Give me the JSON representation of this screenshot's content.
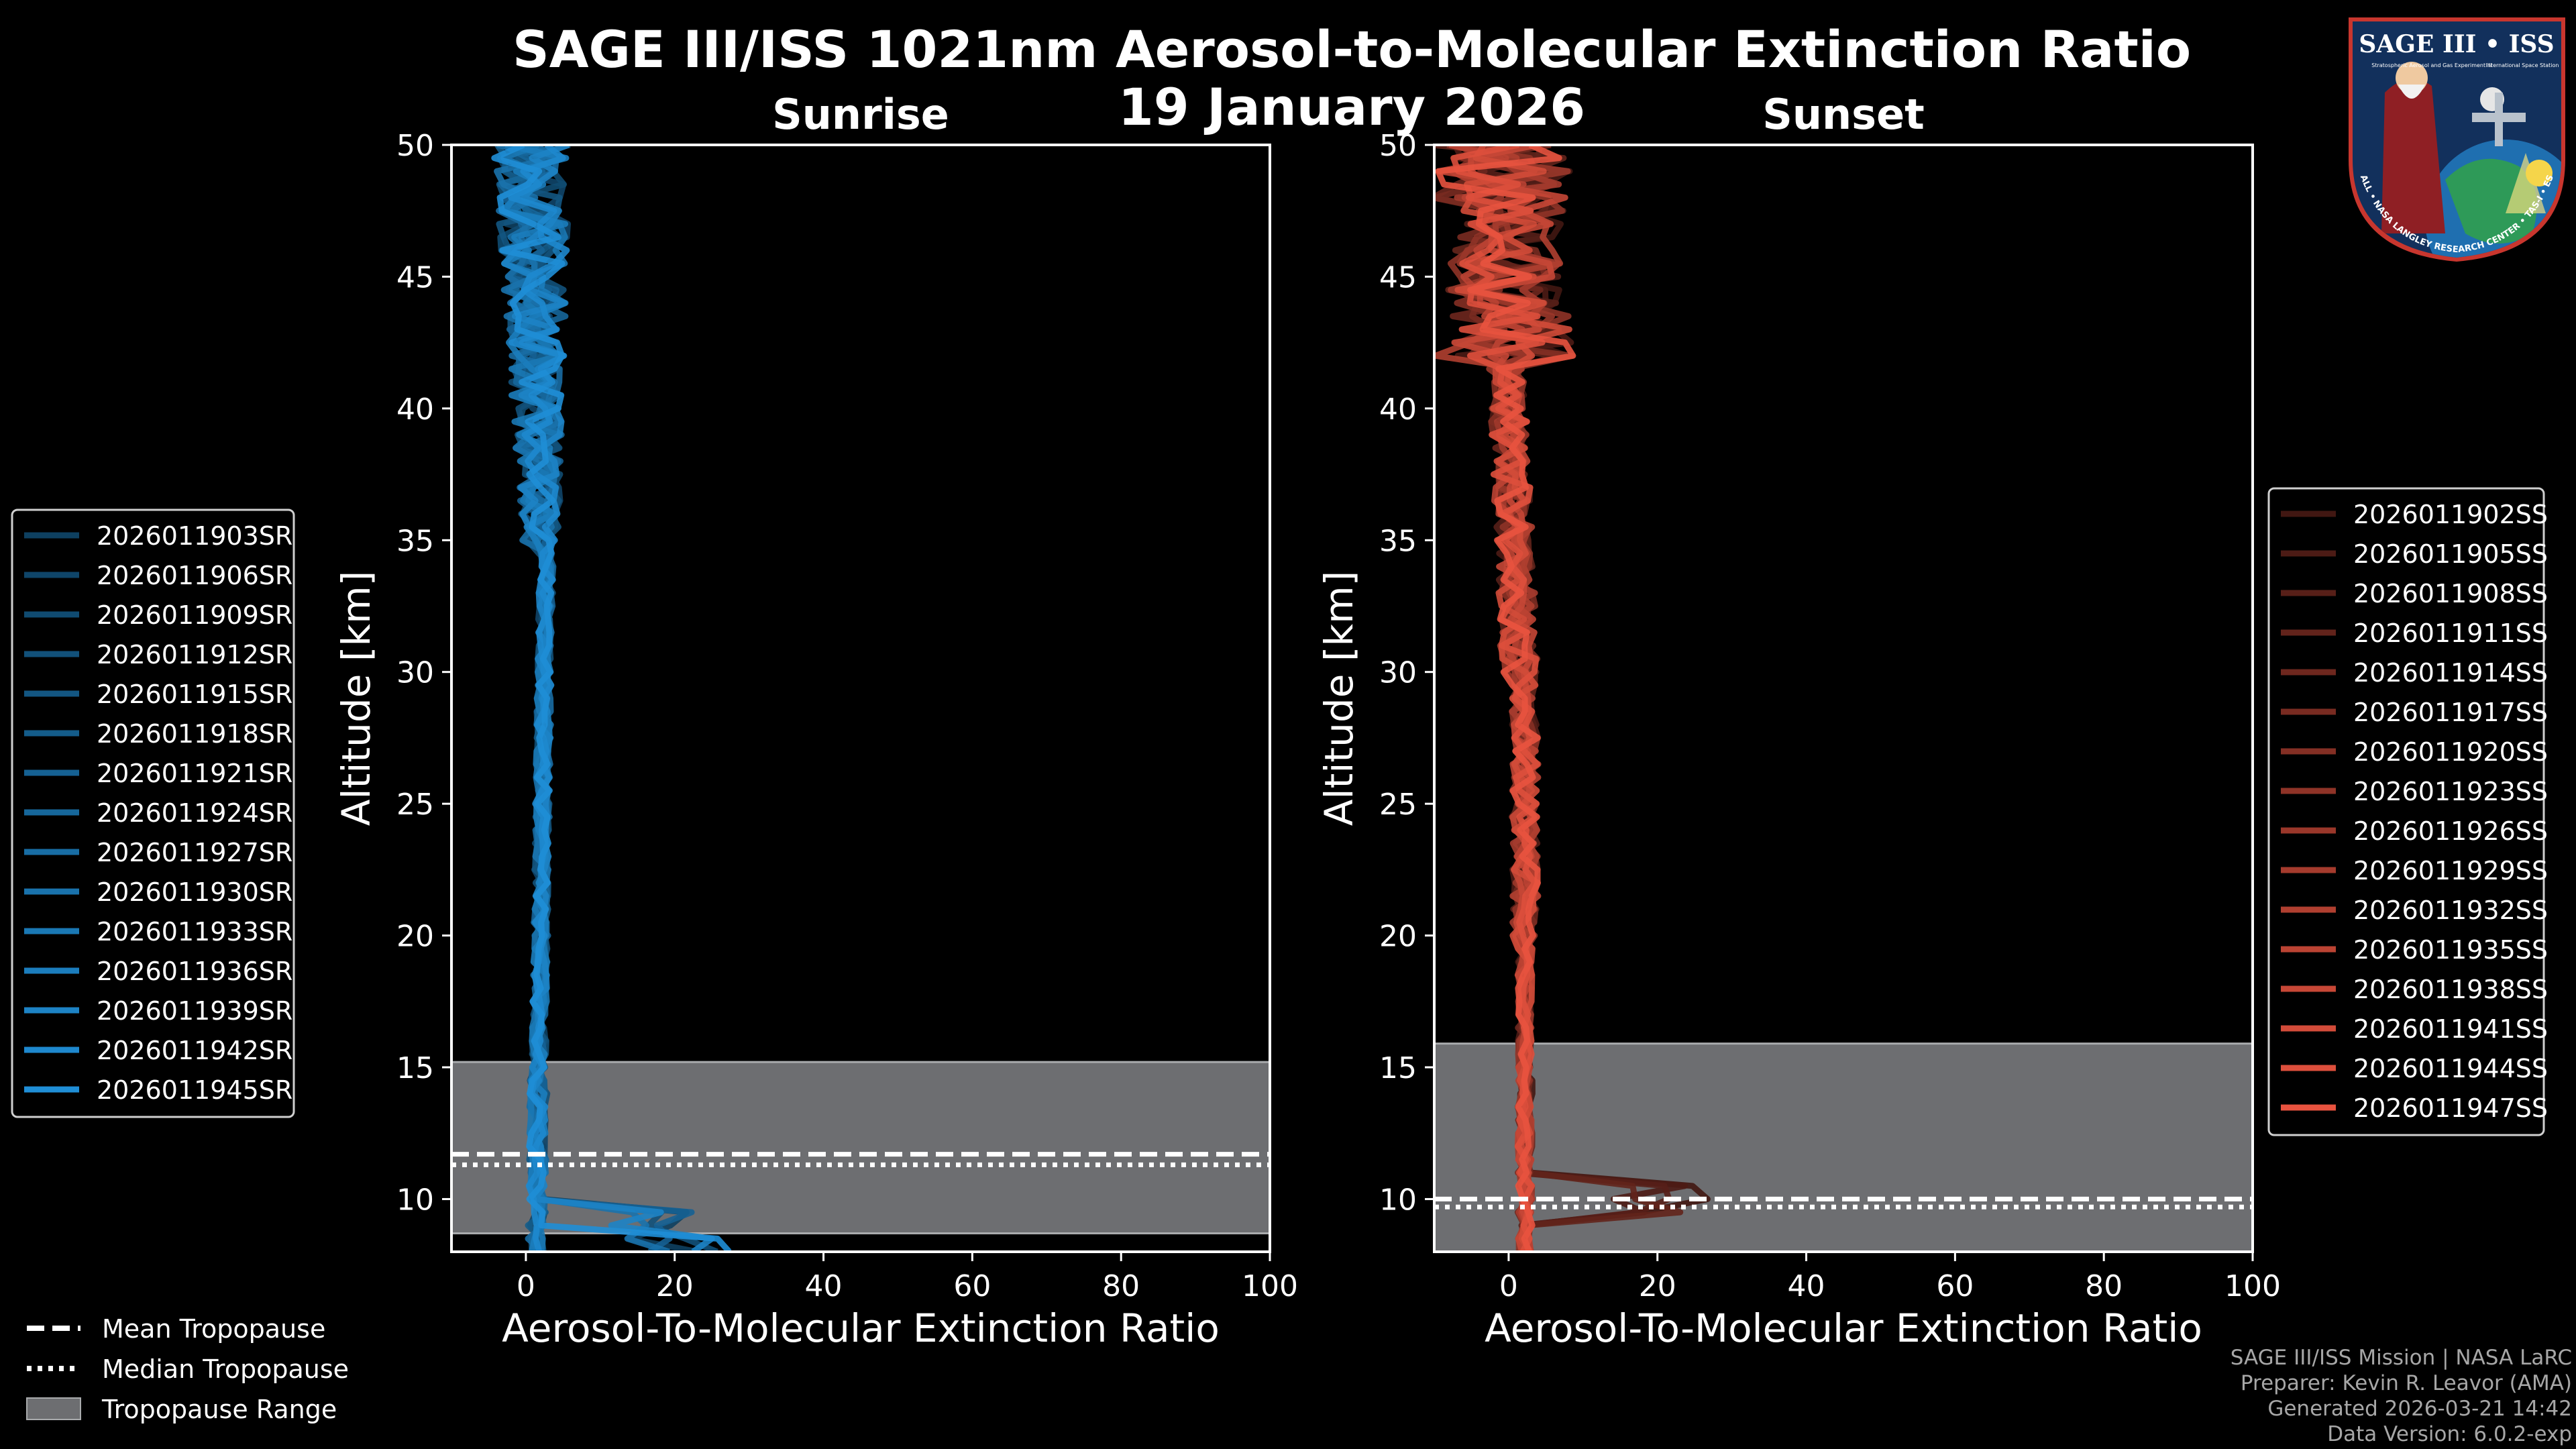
{
  "chart_data": {
    "type": "line",
    "title": "SAGE III/ISS 1021nm Aerosol-to-Molecular Extinction Ratio",
    "date": "19 January 2026",
    "xlabel": "Aerosol-To-Molecular Extinction Ratio",
    "ylabel": "Altitude [km]",
    "xlim": [
      -10,
      100
    ],
    "ylim": [
      8,
      50
    ],
    "xticks": [
      "0",
      "20",
      "40",
      "60",
      "80",
      "100"
    ],
    "yticks": [
      "10",
      "15",
      "20",
      "25",
      "30",
      "35",
      "40",
      "45",
      "50"
    ],
    "panels": [
      {
        "name": "Sunrise",
        "color": "#1f8ed6",
        "tropopause": {
          "min": 8.7,
          "max": 15.2,
          "mean": 11.7,
          "median": 11.3
        },
        "series": [
          {
            "name": "2026011903SR"
          },
          {
            "name": "2026011906SR"
          },
          {
            "name": "2026011909SR"
          },
          {
            "name": "2026011912SR"
          },
          {
            "name": "2026011915SR"
          },
          {
            "name": "2026011918SR"
          },
          {
            "name": "2026011921SR"
          },
          {
            "name": "2026011924SR"
          },
          {
            "name": "2026011927SR"
          },
          {
            "name": "2026011930SR"
          },
          {
            "name": "2026011933SR"
          },
          {
            "name": "2026011936SR"
          },
          {
            "name": "2026011939SR"
          },
          {
            "name": "2026011942SR"
          },
          {
            "name": "2026011945SR"
          }
        ]
      },
      {
        "name": "Sunset",
        "color": "#e8533f",
        "tropopause": {
          "min": 8.0,
          "max": 15.9,
          "mean": 10.0,
          "median": 9.7
        },
        "series": [
          {
            "name": "2026011902SS"
          },
          {
            "name": "2026011905SS"
          },
          {
            "name": "2026011908SS"
          },
          {
            "name": "2026011911SS"
          },
          {
            "name": "2026011914SS"
          },
          {
            "name": "2026011917SS"
          },
          {
            "name": "2026011920SS"
          },
          {
            "name": "2026011923SS"
          },
          {
            "name": "2026011926SS"
          },
          {
            "name": "2026011929SS"
          },
          {
            "name": "2026011932SS"
          },
          {
            "name": "2026011935SS"
          },
          {
            "name": "2026011938SS"
          },
          {
            "name": "2026011941SS"
          },
          {
            "name": "2026011944SS"
          },
          {
            "name": "2026011947SS"
          }
        ]
      }
    ],
    "tropopause_legend": [
      "Mean Tropopause",
      "Median Tropopause",
      "Tropopause Range"
    ],
    "credits": [
      "SAGE III/ISS Mission | NASA LaRC",
      "Preparer: Kevin R. Leavor (AMA)",
      "Generated 2026-03-21 14:42",
      "Data Version: 6.0.2-exp"
    ]
  },
  "logo": {
    "title": "SAGE III • ISS",
    "line1": "Stratospheric Aerosol and Gas Experiment III",
    "line2": "International Space Station",
    "ring": "BALL • NASA LANGLEY RESEARCH CENTER • TAS-I • ESA"
  }
}
